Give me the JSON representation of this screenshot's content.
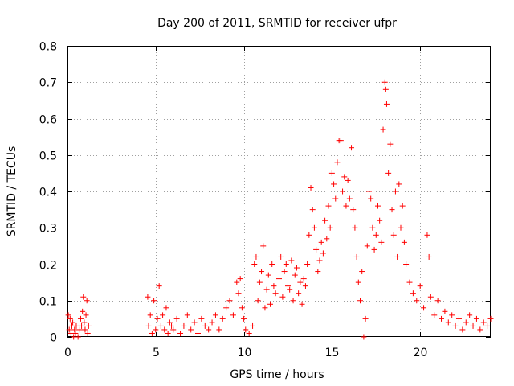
{
  "chart_data": {
    "type": "scatter",
    "title": "Day 200 of 2011, SRMTID for receiver ufpr",
    "xlabel": "GPS time / hours",
    "ylabel": "SRMTID / TECUs",
    "xlim": [
      0,
      24
    ],
    "ylim": [
      0,
      0.8
    ],
    "x_ticks": [
      0,
      5,
      10,
      15,
      20
    ],
    "x_tick_labels": [
      "0",
      "5",
      "10",
      "15",
      "20"
    ],
    "y_ticks": [
      0,
      0.1,
      0.2,
      0.3,
      0.4,
      0.5,
      0.6,
      0.7,
      0.8
    ],
    "y_tick_labels": [
      "0",
      "0.1",
      "0.2",
      "0.3",
      "0.4",
      "0.5",
      "0.6",
      "0.7",
      "0.8"
    ],
    "grid": true,
    "marker": "+",
    "color": "#ff0000",
    "series": [
      {
        "name": "SRMTID",
        "points": [
          [
            0.05,
            0.06
          ],
          [
            0.1,
            0.02
          ],
          [
            0.15,
            0.05
          ],
          [
            0.2,
            0.01
          ],
          [
            0.25,
            0.03
          ],
          [
            0.3,
            0.04
          ],
          [
            0.35,
            0.0
          ],
          [
            0.4,
            0.02
          ],
          [
            0.45,
            0.01
          ],
          [
            0.5,
            0.03
          ],
          [
            0.6,
            0.0
          ],
          [
            0.7,
            0.02
          ],
          [
            0.75,
            0.05
          ],
          [
            0.8,
            0.03
          ],
          [
            0.85,
            0.07
          ],
          [
            0.9,
            0.11
          ],
          [
            0.95,
            0.04
          ],
          [
            1.0,
            0.02
          ],
          [
            1.05,
            0.06
          ],
          [
            1.1,
            0.1
          ],
          [
            1.15,
            0.01
          ],
          [
            1.2,
            0.03
          ],
          [
            4.55,
            0.11
          ],
          [
            4.6,
            0.03
          ],
          [
            4.7,
            0.06
          ],
          [
            4.8,
            0.01
          ],
          [
            4.9,
            0.1
          ],
          [
            5.0,
            0.02
          ],
          [
            5.1,
            0.05
          ],
          [
            5.2,
            0.14
          ],
          [
            5.3,
            0.03
          ],
          [
            5.4,
            0.06
          ],
          [
            5.5,
            0.02
          ],
          [
            5.6,
            0.08
          ],
          [
            5.7,
            0.01
          ],
          [
            5.8,
            0.04
          ],
          [
            5.9,
            0.03
          ],
          [
            6.0,
            0.02
          ],
          [
            6.2,
            0.05
          ],
          [
            6.4,
            0.01
          ],
          [
            6.6,
            0.03
          ],
          [
            6.8,
            0.06
          ],
          [
            7.0,
            0.02
          ],
          [
            7.2,
            0.04
          ],
          [
            7.4,
            0.01
          ],
          [
            7.6,
            0.05
          ],
          [
            7.8,
            0.03
          ],
          [
            8.0,
            0.02
          ],
          [
            8.2,
            0.04
          ],
          [
            8.4,
            0.06
          ],
          [
            8.6,
            0.02
          ],
          [
            8.8,
            0.05
          ],
          [
            9.0,
            0.08
          ],
          [
            9.2,
            0.1
          ],
          [
            9.4,
            0.06
          ],
          [
            9.6,
            0.15
          ],
          [
            9.7,
            0.12
          ],
          [
            9.8,
            0.16
          ],
          [
            9.9,
            0.08
          ],
          [
            10.0,
            0.05
          ],
          [
            10.1,
            0.02
          ],
          [
            10.3,
            0.01
          ],
          [
            10.5,
            0.03
          ],
          [
            10.6,
            0.2
          ],
          [
            10.7,
            0.22
          ],
          [
            10.8,
            0.1
          ],
          [
            10.9,
            0.15
          ],
          [
            11.0,
            0.18
          ],
          [
            11.1,
            0.25
          ],
          [
            11.2,
            0.08
          ],
          [
            11.3,
            0.13
          ],
          [
            11.4,
            0.17
          ],
          [
            11.5,
            0.09
          ],
          [
            11.6,
            0.2
          ],
          [
            11.7,
            0.14
          ],
          [
            11.8,
            0.12
          ],
          [
            12.0,
            0.16
          ],
          [
            12.1,
            0.22
          ],
          [
            12.2,
            0.11
          ],
          [
            12.3,
            0.18
          ],
          [
            12.4,
            0.2
          ],
          [
            12.5,
            0.14
          ],
          [
            12.6,
            0.13
          ],
          [
            12.7,
            0.21
          ],
          [
            12.8,
            0.1
          ],
          [
            12.9,
            0.17
          ],
          [
            13.0,
            0.19
          ],
          [
            13.1,
            0.12
          ],
          [
            13.2,
            0.15
          ],
          [
            13.3,
            0.09
          ],
          [
            13.4,
            0.16
          ],
          [
            13.5,
            0.14
          ],
          [
            13.6,
            0.2
          ],
          [
            13.7,
            0.28
          ],
          [
            13.8,
            0.41
          ],
          [
            13.9,
            0.35
          ],
          [
            14.0,
            0.3
          ],
          [
            14.1,
            0.24
          ],
          [
            14.2,
            0.18
          ],
          [
            14.3,
            0.21
          ],
          [
            14.4,
            0.26
          ],
          [
            14.5,
            0.23
          ],
          [
            14.6,
            0.32
          ],
          [
            14.7,
            0.27
          ],
          [
            14.8,
            0.36
          ],
          [
            14.9,
            0.3
          ],
          [
            15.0,
            0.45
          ],
          [
            15.1,
            0.42
          ],
          [
            15.2,
            0.38
          ],
          [
            15.3,
            0.48
          ],
          [
            15.4,
            0.54
          ],
          [
            15.5,
            0.54
          ],
          [
            15.6,
            0.4
          ],
          [
            15.7,
            0.44
          ],
          [
            15.8,
            0.36
          ],
          [
            15.9,
            0.43
          ],
          [
            16.0,
            0.38
          ],
          [
            16.1,
            0.52
          ],
          [
            16.2,
            0.35
          ],
          [
            16.3,
            0.3
          ],
          [
            16.4,
            0.22
          ],
          [
            16.5,
            0.15
          ],
          [
            16.6,
            0.1
          ],
          [
            16.7,
            0.18
          ],
          [
            16.8,
            0.0
          ],
          [
            16.9,
            0.05
          ],
          [
            17.0,
            0.25
          ],
          [
            17.1,
            0.4
          ],
          [
            17.2,
            0.38
          ],
          [
            17.3,
            0.3
          ],
          [
            17.4,
            0.24
          ],
          [
            17.5,
            0.28
          ],
          [
            17.6,
            0.36
          ],
          [
            17.7,
            0.32
          ],
          [
            17.8,
            0.26
          ],
          [
            17.9,
            0.57
          ],
          [
            18.0,
            0.7
          ],
          [
            18.05,
            0.68
          ],
          [
            18.1,
            0.64
          ],
          [
            18.2,
            0.45
          ],
          [
            18.3,
            0.53
          ],
          [
            18.4,
            0.35
          ],
          [
            18.5,
            0.28
          ],
          [
            18.6,
            0.4
          ],
          [
            18.7,
            0.22
          ],
          [
            18.8,
            0.42
          ],
          [
            18.9,
            0.3
          ],
          [
            19.0,
            0.36
          ],
          [
            19.1,
            0.26
          ],
          [
            19.2,
            0.2
          ],
          [
            19.4,
            0.15
          ],
          [
            19.6,
            0.12
          ],
          [
            19.8,
            0.1
          ],
          [
            20.0,
            0.14
          ],
          [
            20.2,
            0.08
          ],
          [
            20.4,
            0.28
          ],
          [
            20.5,
            0.22
          ],
          [
            20.6,
            0.11
          ],
          [
            20.8,
            0.06
          ],
          [
            21.0,
            0.1
          ],
          [
            21.2,
            0.05
          ],
          [
            21.4,
            0.07
          ],
          [
            21.6,
            0.04
          ],
          [
            21.8,
            0.06
          ],
          [
            22.0,
            0.03
          ],
          [
            22.2,
            0.05
          ],
          [
            22.4,
            0.02
          ],
          [
            22.6,
            0.04
          ],
          [
            22.8,
            0.06
          ],
          [
            23.0,
            0.03
          ],
          [
            23.2,
            0.05
          ],
          [
            23.4,
            0.02
          ],
          [
            23.6,
            0.04
          ],
          [
            23.8,
            0.03
          ],
          [
            24.0,
            0.05
          ]
        ]
      }
    ]
  }
}
